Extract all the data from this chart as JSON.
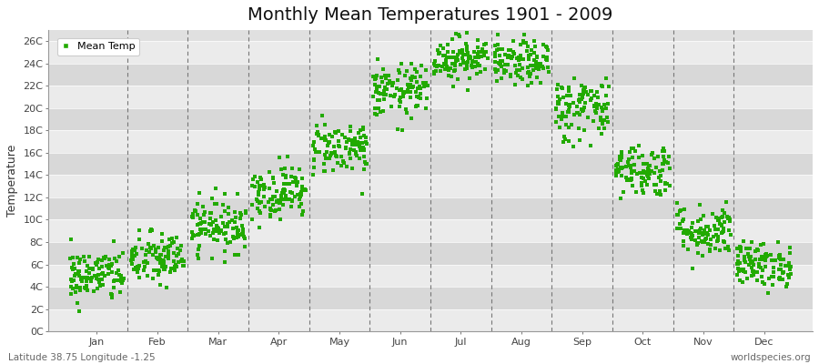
{
  "title": "Monthly Mean Temperatures 1901 - 2009",
  "ylabel": "Temperature",
  "xlabel_labels": [
    "Jan",
    "Feb",
    "Mar",
    "Apr",
    "May",
    "Jun",
    "Jul",
    "Aug",
    "Sep",
    "Oct",
    "Nov",
    "Dec"
  ],
  "ytick_labels": [
    "0C",
    "2C",
    "4C",
    "6C",
    "8C",
    "10C",
    "12C",
    "14C",
    "16C",
    "18C",
    "20C",
    "22C",
    "24C",
    "26C"
  ],
  "ytick_values": [
    0,
    2,
    4,
    6,
    8,
    10,
    12,
    14,
    16,
    18,
    20,
    22,
    24,
    26
  ],
  "ylim": [
    0,
    27
  ],
  "xlim": [
    -0.3,
    12.3
  ],
  "dot_color": "#22AA00",
  "dot_size": 5,
  "background_color": "#E0E0E0",
  "band_color_light": "#EBEBEB",
  "band_color_dark": "#D8D8D8",
  "dashed_line_color": "#777777",
  "legend_label": "Mean Temp",
  "footer_left": "Latitude 38.75 Longitude -1.25",
  "footer_right": "worldspecies.org",
  "monthly_means": [
    5.0,
    6.5,
    9.5,
    12.5,
    16.5,
    21.5,
    24.5,
    24.0,
    20.0,
    14.5,
    9.0,
    6.0
  ],
  "monthly_stds": [
    1.2,
    1.2,
    1.2,
    1.2,
    1.2,
    1.2,
    1.0,
    1.0,
    1.5,
    1.2,
    1.2,
    1.0
  ],
  "n_years": 109,
  "title_fontsize": 14,
  "axis_fontsize": 9,
  "tick_fontsize": 8,
  "footer_fontsize": 7.5
}
